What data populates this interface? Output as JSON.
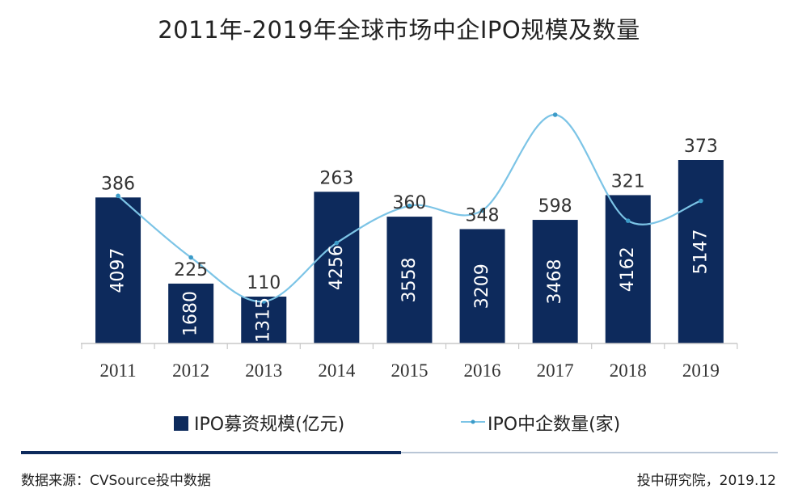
{
  "title": "2011年-2019年全球市场中企IPO规模及数量",
  "source": "数据来源：CVSource投中数据",
  "credit": "投中研究院，2019.12",
  "colors": {
    "bar": "#0d2a5c",
    "line": "#7cc4e6",
    "bar_label": "#ffffff",
    "value_label": "#333333"
  },
  "chart_data": {
    "type": "bar",
    "categories": [
      "2011",
      "2012",
      "2013",
      "2014",
      "2015",
      "2016",
      "2017",
      "2018",
      "2019"
    ],
    "series": [
      {
        "name": "IPO募资规模(亿元)",
        "type": "bar",
        "values": [
          4097,
          1680,
          1315,
          4256,
          3558,
          3209,
          3468,
          4162,
          5147
        ]
      },
      {
        "name": "IPO中企数量(家)",
        "type": "line",
        "values": [
          386,
          225,
          110,
          263,
          360,
          348,
          598,
          321,
          373
        ]
      }
    ],
    "legend": "bottom",
    "grid": false
  }
}
